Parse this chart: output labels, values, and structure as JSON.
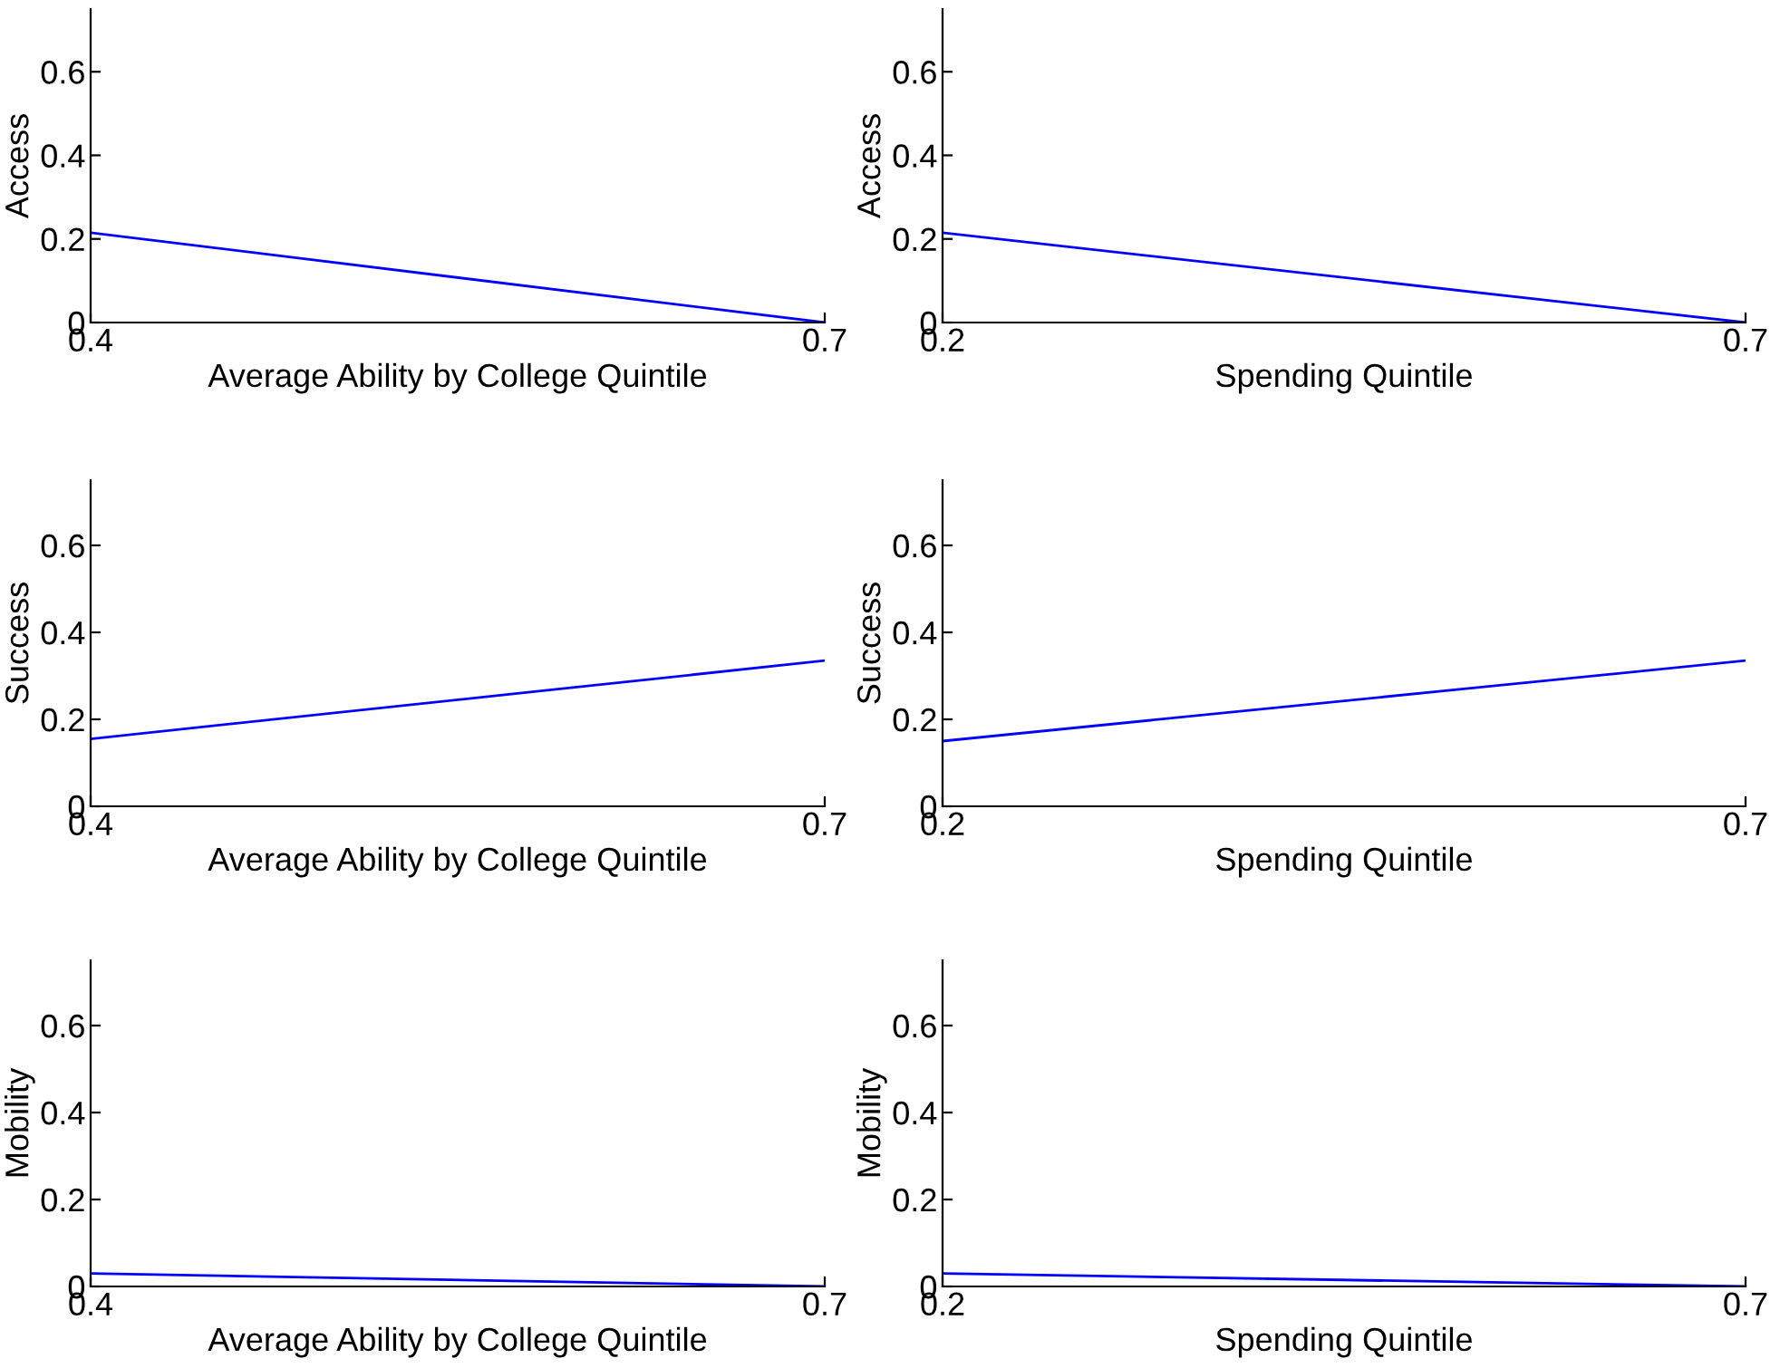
{
  "chart_data": [
    {
      "type": "line",
      "x": [
        0.4,
        0.7
      ],
      "values": [
        0.215,
        0.0
      ],
      "color": "#0000ff",
      "xlabel": "Average Ability by College Quintile",
      "ylabel": "Access",
      "xlim": [
        0.4,
        0.7
      ],
      "xticks": [
        0.4,
        0.7
      ],
      "ylim": [
        0,
        0.75
      ],
      "yticks": [
        0,
        0.2,
        0.4,
        0.6
      ]
    },
    {
      "type": "line",
      "x": [
        0.2,
        0.7
      ],
      "values": [
        0.215,
        0.0
      ],
      "color": "#0000ff",
      "xlabel": "Spending Quintile",
      "ylabel": "Access",
      "xlim": [
        0.2,
        0.7
      ],
      "xticks": [
        0.2,
        0.7
      ],
      "ylim": [
        0,
        0.75
      ],
      "yticks": [
        0,
        0.2,
        0.4,
        0.6
      ]
    },
    {
      "type": "line",
      "x": [
        0.4,
        0.7
      ],
      "values": [
        0.155,
        0.335
      ],
      "color": "#0000ff",
      "xlabel": "Average Ability by College Quintile",
      "ylabel": "Success",
      "xlim": [
        0.4,
        0.7
      ],
      "xticks": [
        0.4,
        0.7
      ],
      "ylim": [
        0,
        0.75
      ],
      "yticks": [
        0,
        0.2,
        0.4,
        0.6
      ]
    },
    {
      "type": "line",
      "x": [
        0.2,
        0.7
      ],
      "values": [
        0.15,
        0.335
      ],
      "color": "#0000ff",
      "xlabel": "Spending Quintile",
      "ylabel": "Success",
      "xlim": [
        0.2,
        0.7
      ],
      "xticks": [
        0.2,
        0.7
      ],
      "ylim": [
        0,
        0.75
      ],
      "yticks": [
        0,
        0.2,
        0.4,
        0.6
      ]
    },
    {
      "type": "line",
      "x": [
        0.4,
        0.7
      ],
      "values": [
        0.03,
        0.0
      ],
      "color": "#0000ff",
      "xlabel": "Average Ability by College Quintile",
      "ylabel": "Mobility",
      "xlim": [
        0.4,
        0.7
      ],
      "xticks": [
        0.4,
        0.7
      ],
      "ylim": [
        0,
        0.75
      ],
      "yticks": [
        0,
        0.2,
        0.4,
        0.6
      ]
    },
    {
      "type": "line",
      "x": [
        0.2,
        0.7
      ],
      "values": [
        0.03,
        0.0
      ],
      "color": "#0000ff",
      "xlabel": "Spending Quintile",
      "ylabel": "Mobility",
      "xlim": [
        0.2,
        0.7
      ],
      "xticks": [
        0.2,
        0.7
      ],
      "ylim": [
        0,
        0.75
      ],
      "yticks": [
        0,
        0.2,
        0.4,
        0.6
      ]
    }
  ]
}
